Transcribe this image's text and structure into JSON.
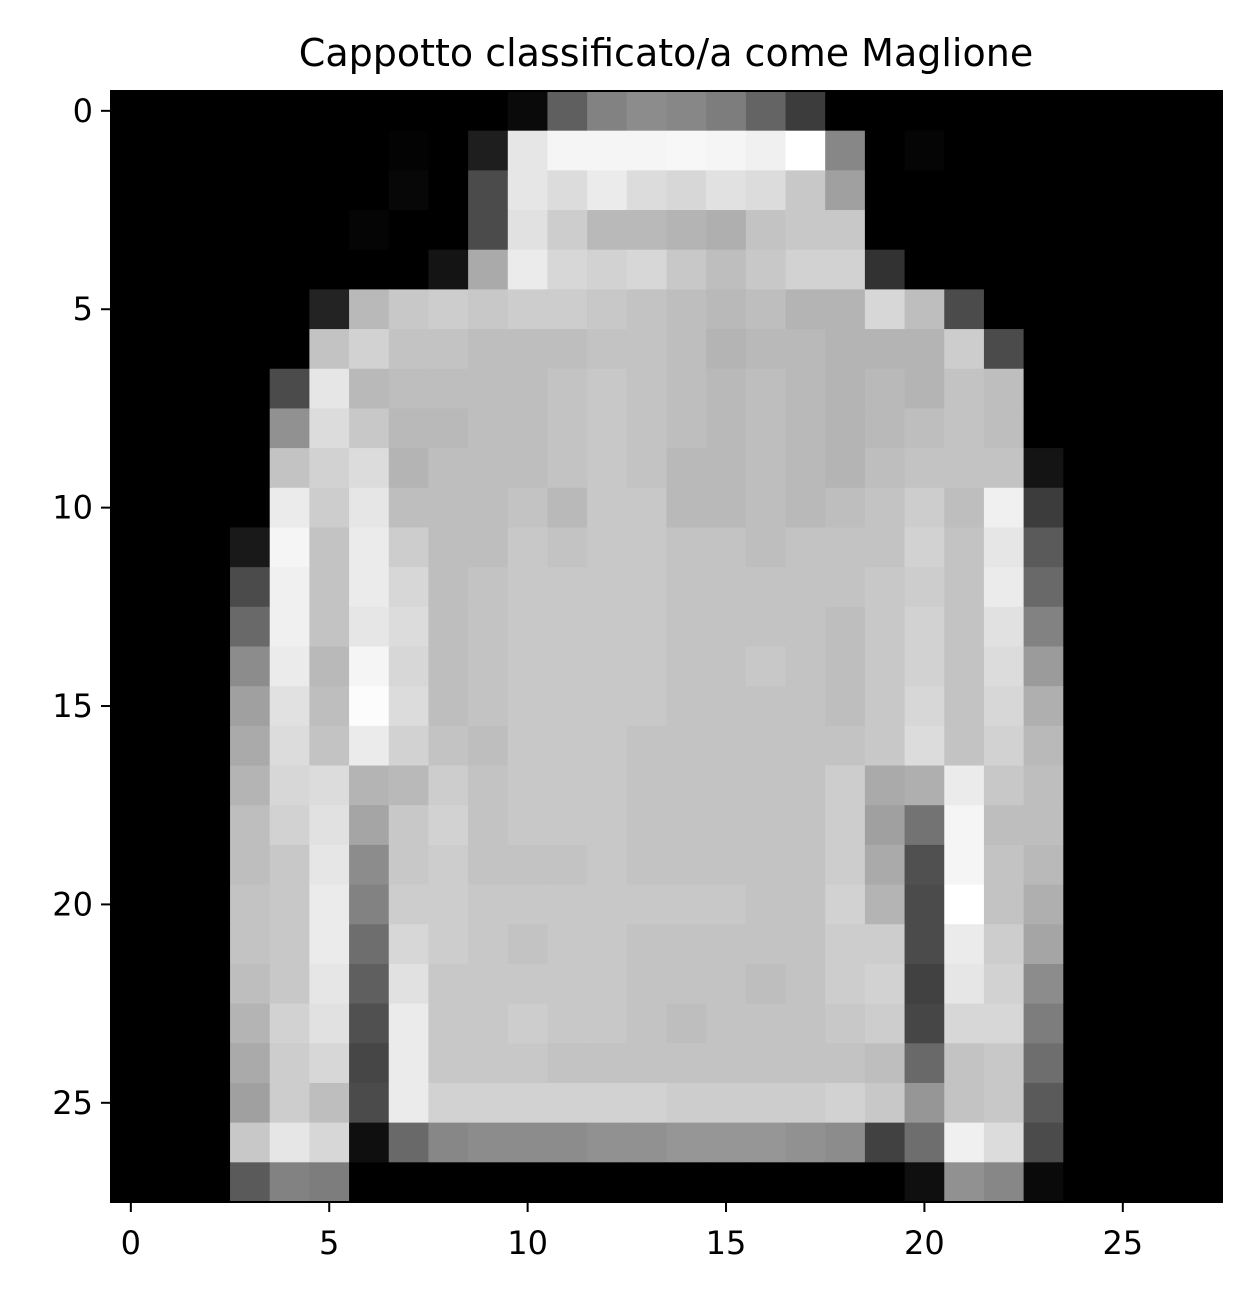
{
  "chart_data": {
    "type": "heatmap",
    "title": "Cappotto classificato/a come Maglione",
    "xlabel": "",
    "ylabel": "",
    "colormap": "gray",
    "value_range": [
      0,
      255
    ],
    "xlim": [
      -0.5,
      27.5
    ],
    "ylim": [
      27.5,
      -0.5
    ],
    "xticks": [
      0,
      5,
      10,
      15,
      20,
      25
    ],
    "yticks": [
      0,
      5,
      10,
      15,
      20,
      25
    ],
    "xtick_labels": [
      "0",
      "5",
      "10",
      "15",
      "20",
      "25"
    ],
    "ytick_labels": [
      "0",
      "5",
      "10",
      "15",
      "20",
      "25"
    ],
    "grid": false,
    "values": [
      [
        0,
        0,
        0,
        0,
        0,
        0,
        0,
        0,
        0,
        0,
        10,
        95,
        130,
        140,
        135,
        125,
        100,
        60,
        0,
        0,
        0,
        0,
        0,
        0,
        0,
        0,
        0,
        0
      ],
      [
        0,
        0,
        0,
        0,
        0,
        0,
        0,
        3,
        0,
        30,
        230,
        245,
        245,
        245,
        247,
        245,
        240,
        255,
        135,
        0,
        5,
        0,
        0,
        0,
        0,
        0,
        0,
        0
      ],
      [
        0,
        0,
        0,
        0,
        0,
        0,
        0,
        7,
        0,
        75,
        230,
        220,
        235,
        220,
        215,
        225,
        220,
        200,
        160,
        0,
        0,
        0,
        0,
        0,
        0,
        0,
        0,
        0
      ],
      [
        0,
        0,
        0,
        0,
        0,
        0,
        5,
        0,
        0,
        75,
        225,
        205,
        185,
        185,
        180,
        175,
        195,
        200,
        200,
        0,
        0,
        0,
        0,
        0,
        0,
        0,
        0,
        0
      ],
      [
        0,
        0,
        0,
        0,
        0,
        0,
        0,
        0,
        20,
        170,
        235,
        215,
        210,
        215,
        200,
        190,
        200,
        210,
        210,
        50,
        0,
        0,
        0,
        0,
        0,
        0,
        0,
        0
      ],
      [
        0,
        0,
        0,
        0,
        0,
        35,
        185,
        200,
        205,
        200,
        205,
        205,
        200,
        195,
        190,
        185,
        190,
        180,
        180,
        215,
        190,
        75,
        0,
        0,
        0,
        0,
        0,
        0
      ],
      [
        0,
        0,
        0,
        0,
        0,
        195,
        210,
        195,
        195,
        190,
        190,
        190,
        195,
        195,
        190,
        180,
        185,
        185,
        180,
        180,
        180,
        205,
        75,
        0,
        0,
        0,
        0,
        0
      ],
      [
        0,
        0,
        0,
        0,
        75,
        230,
        185,
        190,
        190,
        190,
        190,
        195,
        200,
        195,
        190,
        185,
        190,
        185,
        180,
        185,
        180,
        195,
        190,
        0,
        0,
        0,
        0,
        0
      ],
      [
        0,
        0,
        0,
        0,
        145,
        220,
        200,
        185,
        185,
        190,
        190,
        195,
        200,
        195,
        190,
        185,
        190,
        185,
        180,
        185,
        190,
        195,
        190,
        0,
        0,
        0,
        0,
        0
      ],
      [
        0,
        0,
        0,
        0,
        195,
        210,
        220,
        180,
        190,
        190,
        190,
        195,
        200,
        195,
        185,
        185,
        190,
        185,
        180,
        190,
        195,
        195,
        195,
        20,
        0,
        0,
        0,
        0
      ],
      [
        0,
        0,
        0,
        0,
        235,
        205,
        230,
        190,
        190,
        190,
        195,
        185,
        200,
        200,
        185,
        185,
        190,
        185,
        190,
        195,
        205,
        190,
        240,
        60,
        0,
        0,
        0,
        0
      ],
      [
        0,
        0,
        0,
        25,
        245,
        195,
        235,
        205,
        190,
        190,
        200,
        195,
        200,
        200,
        195,
        195,
        190,
        195,
        195,
        195,
        210,
        195,
        230,
        90,
        0,
        0,
        0,
        0
      ],
      [
        0,
        0,
        0,
        75,
        240,
        195,
        235,
        215,
        190,
        195,
        200,
        200,
        200,
        200,
        195,
        195,
        195,
        195,
        195,
        200,
        205,
        195,
        235,
        105,
        0,
        0,
        0,
        0
      ],
      [
        0,
        0,
        0,
        105,
        240,
        195,
        230,
        220,
        190,
        195,
        200,
        200,
        200,
        200,
        195,
        195,
        195,
        195,
        190,
        200,
        210,
        195,
        225,
        130,
        0,
        0,
        0,
        0
      ],
      [
        0,
        0,
        0,
        140,
        235,
        185,
        245,
        215,
        190,
        195,
        200,
        200,
        200,
        200,
        195,
        195,
        200,
        195,
        190,
        200,
        210,
        195,
        220,
        155,
        0,
        0,
        0,
        0
      ],
      [
        0,
        0,
        0,
        160,
        225,
        190,
        252,
        220,
        190,
        195,
        200,
        200,
        200,
        200,
        195,
        195,
        195,
        195,
        190,
        200,
        215,
        195,
        215,
        175,
        0,
        0,
        0,
        0
      ],
      [
        0,
        0,
        0,
        170,
        220,
        195,
        235,
        210,
        195,
        190,
        200,
        200,
        200,
        195,
        195,
        195,
        195,
        195,
        195,
        200,
        220,
        195,
        210,
        185,
        0,
        0,
        0,
        0
      ],
      [
        0,
        0,
        0,
        180,
        215,
        220,
        180,
        185,
        205,
        195,
        200,
        200,
        200,
        195,
        195,
        195,
        195,
        195,
        205,
        170,
        175,
        235,
        200,
        190,
        0,
        0,
        0,
        0
      ],
      [
        0,
        0,
        0,
        190,
        210,
        225,
        165,
        200,
        210,
        195,
        200,
        200,
        200,
        195,
        195,
        195,
        195,
        195,
        205,
        160,
        115,
        245,
        190,
        190,
        0,
        0,
        0,
        0
      ],
      [
        0,
        0,
        0,
        190,
        200,
        230,
        140,
        200,
        205,
        195,
        195,
        195,
        200,
        195,
        195,
        195,
        195,
        195,
        205,
        170,
        80,
        245,
        195,
        185,
        0,
        0,
        0,
        0
      ],
      [
        0,
        0,
        0,
        195,
        200,
        235,
        130,
        205,
        205,
        200,
        200,
        200,
        200,
        200,
        200,
        200,
        195,
        195,
        210,
        180,
        75,
        255,
        195,
        175,
        0,
        0,
        0,
        0
      ],
      [
        0,
        0,
        0,
        195,
        200,
        235,
        110,
        215,
        205,
        200,
        195,
        200,
        200,
        195,
        195,
        195,
        195,
        195,
        205,
        205,
        75,
        235,
        205,
        165,
        0,
        0,
        0,
        0
      ],
      [
        0,
        0,
        0,
        190,
        200,
        230,
        95,
        225,
        200,
        200,
        200,
        200,
        200,
        195,
        195,
        195,
        190,
        195,
        205,
        210,
        65,
        230,
        210,
        140,
        0,
        0,
        0,
        0
      ],
      [
        0,
        0,
        0,
        180,
        210,
        225,
        80,
        235,
        200,
        200,
        205,
        200,
        200,
        195,
        190,
        195,
        195,
        195,
        200,
        205,
        70,
        215,
        215,
        125,
        0,
        0,
        0,
        0
      ],
      [
        0,
        0,
        0,
        170,
        205,
        215,
        70,
        235,
        200,
        200,
        200,
        195,
        195,
        195,
        195,
        195,
        195,
        195,
        195,
        190,
        105,
        195,
        200,
        110,
        0,
        0,
        0,
        0
      ],
      [
        0,
        0,
        0,
        160,
        205,
        190,
        75,
        235,
        210,
        210,
        210,
        210,
        210,
        210,
        205,
        205,
        205,
        205,
        210,
        200,
        150,
        195,
        200,
        90,
        0,
        0,
        0,
        0
      ],
      [
        0,
        0,
        0,
        200,
        230,
        215,
        15,
        105,
        135,
        140,
        140,
        140,
        145,
        145,
        150,
        150,
        150,
        145,
        140,
        65,
        110,
        240,
        220,
        75,
        0,
        0,
        0,
        0
      ],
      [
        0,
        0,
        0,
        90,
        130,
        125,
        0,
        0,
        0,
        0,
        0,
        0,
        0,
        0,
        0,
        0,
        0,
        0,
        0,
        0,
        15,
        145,
        135,
        10,
        0,
        0,
        0,
        0
      ]
    ]
  }
}
